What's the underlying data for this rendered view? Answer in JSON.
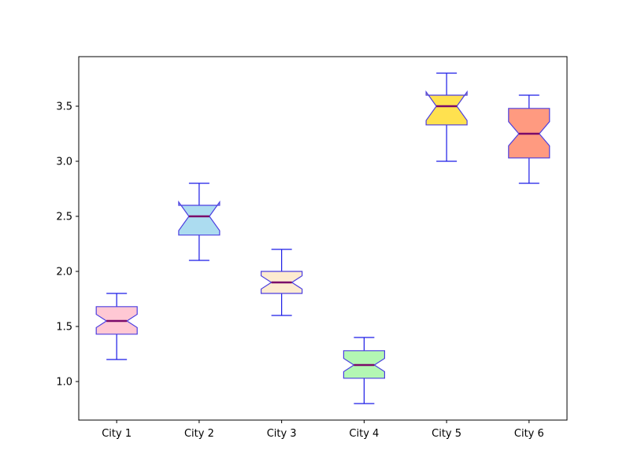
{
  "chart_data": {
    "type": "boxplot",
    "title": "",
    "xlabel": "",
    "ylabel": "",
    "notched": true,
    "ylim": [
      0.65,
      3.95
    ],
    "yticks": [
      1.0,
      1.5,
      2.0,
      2.5,
      3.0,
      3.5
    ],
    "ytick_labels": [
      "1.0",
      "1.5",
      "2.0",
      "2.5",
      "3.0",
      "3.5"
    ],
    "categories": [
      "City 1",
      "City 2",
      "City 3",
      "City 4",
      "City 5",
      "City 6"
    ],
    "boxes": [
      {
        "name": "City 1",
        "whisker_low": 1.2,
        "q1": 1.43,
        "median": 1.55,
        "q3": 1.68,
        "whisker_high": 1.8,
        "notch_low": 1.49,
        "notch_high": 1.61,
        "color": "#ffc8d4"
      },
      {
        "name": "City 2",
        "whisker_low": 2.1,
        "q1": 2.33,
        "median": 2.5,
        "q3": 2.6,
        "whisker_high": 2.8,
        "notch_low": 2.37,
        "notch_high": 2.63,
        "color": "#acdcf0"
      },
      {
        "name": "City 3",
        "whisker_low": 1.6,
        "q1": 1.8,
        "median": 1.9,
        "q3": 2.0,
        "whisker_high": 2.2,
        "notch_low": 1.84,
        "notch_high": 1.96,
        "color": "#fdebd0"
      },
      {
        "name": "City 4",
        "whisker_low": 0.8,
        "q1": 1.03,
        "median": 1.15,
        "q3": 1.28,
        "whisker_high": 1.4,
        "notch_low": 1.09,
        "notch_high": 1.21,
        "color": "#b3f7b3"
      },
      {
        "name": "City 5",
        "whisker_low": 3.0,
        "q1": 3.33,
        "median": 3.5,
        "q3": 3.6,
        "whisker_high": 3.8,
        "notch_low": 3.37,
        "notch_high": 3.63,
        "color": "#ffe14f"
      },
      {
        "name": "City 6",
        "whisker_low": 2.8,
        "q1": 3.03,
        "median": 3.25,
        "q3": 3.48,
        "whisker_high": 3.6,
        "notch_low": 3.14,
        "notch_high": 3.36,
        "color": "#ff9a80"
      }
    ],
    "colors": {
      "box_edge": "#4b3ee0",
      "whisker": "#1a1ae6",
      "median": "#7b0a6a",
      "axes": "#000000"
    }
  }
}
